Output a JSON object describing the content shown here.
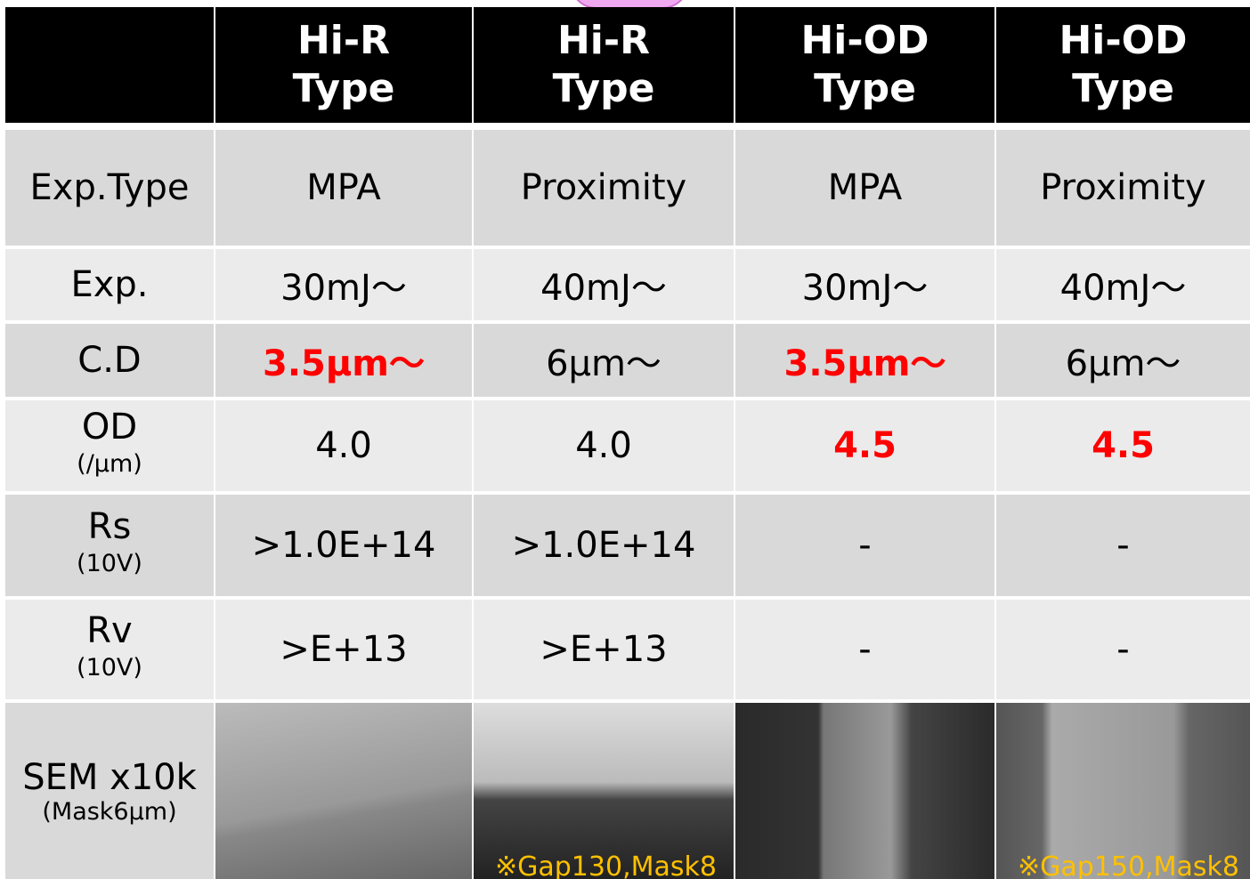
{
  "table": {
    "header": [
      [
        "Hi-R",
        "Type"
      ],
      [
        "Hi-R",
        "Type"
      ],
      [
        "Hi-OD",
        "Type"
      ],
      [
        "Hi-OD",
        "Type"
      ]
    ],
    "rows": [
      {
        "label": "Exp.Type",
        "cells": [
          "MPA",
          "Proximity",
          "MPA",
          "Proximity"
        ],
        "emphasis": [
          false,
          false,
          false,
          false
        ]
      },
      {
        "label": "Exp.",
        "cells": [
          "30mJ～",
          "40mJ～",
          "30mJ～",
          "40mJ～"
        ],
        "emphasis": [
          false,
          false,
          false,
          false
        ]
      },
      {
        "label": "C.D",
        "cells": [
          "3.5μm～",
          "6μm～",
          "3.5μm～",
          "6μm～"
        ],
        "emphasis": [
          true,
          false,
          true,
          false
        ]
      },
      {
        "label": "OD",
        "sublabel": "(/μm)",
        "cells": [
          "4.0",
          "4.0",
          "4.5",
          "4.5"
        ],
        "emphasis": [
          false,
          false,
          true,
          true
        ]
      },
      {
        "label": "Rs",
        "sublabel": "(10V)",
        "cells": [
          ">1.0E+14",
          ">1.0E+14",
          "-",
          "-"
        ],
        "emphasis": [
          false,
          false,
          false,
          false
        ]
      },
      {
        "label": "Rv",
        "sublabel": "(10V)",
        "cells": [
          ">E+13",
          ">E+13",
          "-",
          "-"
        ],
        "emphasis": [
          false,
          false,
          false,
          false
        ]
      }
    ],
    "sem_row": {
      "label": "SEM x10k",
      "sublabel": "(Mask6μm)",
      "notes": [
        null,
        "※Gap130,Mask8",
        null,
        "※Gap150,Mask8"
      ]
    }
  }
}
